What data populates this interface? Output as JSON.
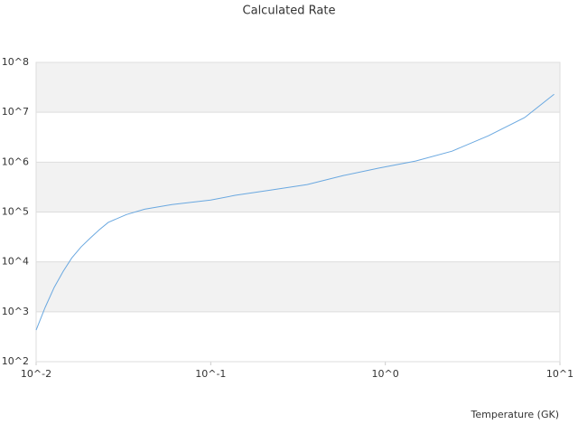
{
  "chart_data": {
    "type": "line",
    "title": "Calculated Rate",
    "x_label": "Temperature (GK)",
    "x_scale": "log",
    "y_scale": "log",
    "grid": true,
    "xlim": [
      0.01,
      10
    ],
    "ylim": [
      100,
      100000000
    ],
    "xticks": [
      {
        "value": 0.01,
        "label": "10^-2"
      },
      {
        "value": 0.1,
        "label": "10^-1"
      },
      {
        "value": 1,
        "label": "10^0"
      },
      {
        "value": 10,
        "label": "10^1"
      }
    ],
    "yticks": [
      {
        "value": 100,
        "label": "10^2"
      },
      {
        "value": 1000,
        "label": "10^3"
      },
      {
        "value": 10000,
        "label": "10^4"
      },
      {
        "value": 100000,
        "label": "10^5"
      },
      {
        "value": 1000000,
        "label": "10^6"
      },
      {
        "value": 10000000,
        "label": "10^7"
      },
      {
        "value": 100000000,
        "label": "10^8"
      }
    ],
    "series": [
      {
        "color": "#6aa8e0",
        "x": [
          0.01,
          0.01127,
          0.0127,
          0.0143,
          0.016,
          0.0181,
          0.0204,
          0.023,
          0.0259,
          0.0329,
          0.0418,
          0.0599,
          0.1,
          0.138,
          0.22,
          0.357,
          0.572,
          0.92,
          1.49,
          2.41,
          3.89,
          6.27,
          9.26
        ],
        "values": [
          430,
          1230,
          3100,
          6500,
          12000,
          20000,
          30000,
          44000,
          62000,
          89000,
          114000,
          141000,
          174000,
          216000,
          275000,
          355000,
          537000,
          760000,
          1050000,
          1660000,
          3380000,
          7800000,
          23000000
        ]
      }
    ]
  }
}
